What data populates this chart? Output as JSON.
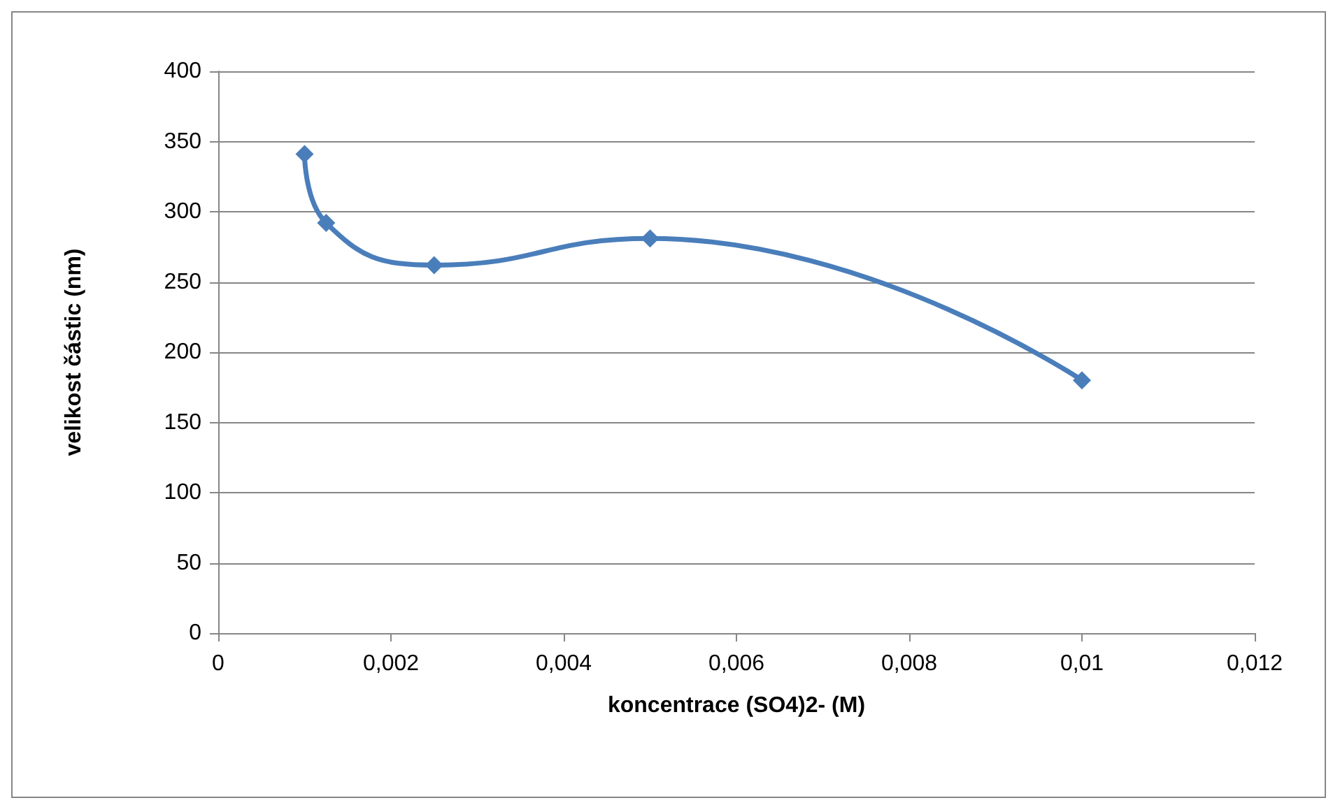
{
  "chart_data": {
    "type": "line",
    "xlabel": "koncentrace (SO4)2- (M)",
    "ylabel": "velikost částic (nm)",
    "x": [
      0.001,
      0.00125,
      0.0025,
      0.005,
      0.01
    ],
    "series": [
      {
        "color": "#4a7ebb",
        "values": [
          341,
          292,
          262,
          281,
          180
        ]
      }
    ],
    "xlim": [
      0,
      0.012
    ],
    "xticks": [
      0,
      {
        "value": 0.002,
        "label": "0,002"
      },
      {
        "value": 0.004,
        "label": "0,004"
      },
      {
        "value": 0.006,
        "label": "0,006"
      },
      {
        "value": 0.008,
        "label": "0,008"
      },
      {
        "value": 0.01,
        "label": "0,01"
      },
      {
        "value": 0.012,
        "label": "0,012"
      }
    ],
    "ylim": [
      0,
      400
    ],
    "yticks": [
      0,
      50,
      100,
      150,
      200,
      250,
      300,
      350,
      400
    ],
    "grid": "y",
    "marker": "diamond",
    "line_style": "solid"
  }
}
